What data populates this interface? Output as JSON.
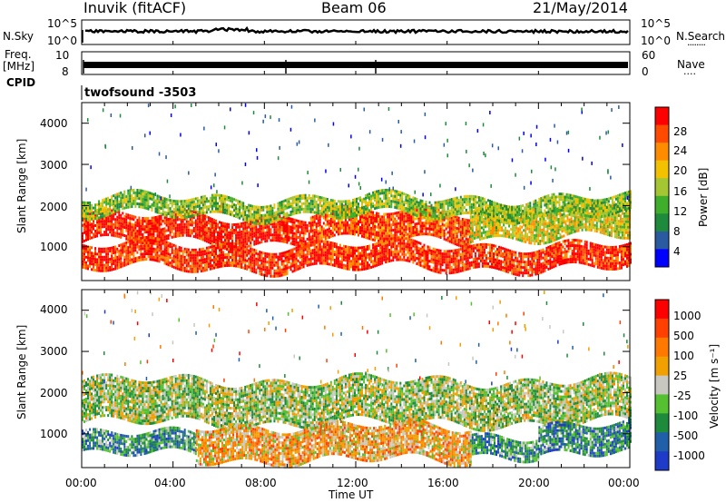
{
  "header": {
    "station": "Inuvik (fitACF)",
    "beam": "Beam 06",
    "date": "21/May/2014"
  },
  "cpid": {
    "label": "CPID",
    "value": "twofsound -3503"
  },
  "time_labels": [
    "00:00",
    "04:00",
    "08:00",
    "12:00",
    "16:00",
    "20:00",
    "00:00"
  ],
  "colors": {
    "power": [
      "#0000ff",
      "#2a5aa0",
      "#1e8a3c",
      "#3fae2a",
      "#a4c632",
      "#f2c200",
      "#ff8c00",
      "#ff4a00",
      "#ff0000"
    ],
    "velocity": [
      "#1e3cc8",
      "#2060a8",
      "#1e8a3c",
      "#55c030",
      "#c8c8c0",
      "#f0a000",
      "#ff7800",
      "#ff4000",
      "#ff0000"
    ]
  },
  "chart_data": [
    {
      "type": "line",
      "panel": "noise",
      "left_label": "N.Sky",
      "right_label": "N.Search",
      "left_ticks": [
        "10^5",
        "10^0"
      ],
      "right_ticks": [
        "10^5",
        "10^0"
      ],
      "legend_marker": "........"
    },
    {
      "type": "line",
      "panel": "frequency",
      "left_label_top": "Freq.",
      "left_label_bottom": "[MHz]",
      "left_ticks": [
        "10",
        "8"
      ],
      "right_label": "Nave",
      "right_ticks": [
        "60",
        "0"
      ],
      "legend_marker": "...."
    },
    {
      "type": "heatmap",
      "panel": "power",
      "ylabel": "Slant Range [km]",
      "yticks": [
        "4000",
        "3000",
        "2000",
        "1000"
      ],
      "ylim": [
        180,
        4500
      ],
      "xlim": [
        0,
        24
      ],
      "colorbar_label": "Power [dB]",
      "colorbar_ticks": [
        "28",
        "24",
        "20",
        "16",
        "12",
        "8",
        "4"
      ],
      "bands": [
        {
          "t0": 0,
          "t1": 10,
          "r0": 1150,
          "r1": 1750,
          "level": 0.95
        },
        {
          "t0": 10,
          "t1": 17,
          "r0": 1150,
          "r1": 1850,
          "level": 0.85
        },
        {
          "t0": 17,
          "t1": 24,
          "r0": 1250,
          "r1": 2000,
          "level": 0.55
        },
        {
          "t0": 0,
          "t1": 24,
          "r0": 500,
          "r1": 1050,
          "level": 0.9
        },
        {
          "t0": 0,
          "t1": 24,
          "r0": 1750,
          "r1": 2200,
          "level": 0.45
        }
      ]
    },
    {
      "type": "heatmap",
      "panel": "velocity",
      "xlabel": "Time UT",
      "ylabel": "Slant Range [km]",
      "yticks": [
        "4000",
        "3000",
        "2000",
        "1000"
      ],
      "ylim": [
        180,
        4500
      ],
      "xlim": [
        0,
        24
      ],
      "colorbar_label": "Velocity [m s⁻¹]",
      "colorbar_ticks": [
        "1000",
        "500",
        "100",
        "25",
        "-25",
        "-100",
        "-500",
        "-1000"
      ],
      "bands": [
        {
          "t0": 0,
          "t1": 24,
          "r0": 1300,
          "r1": 2300,
          "level": 0.45
        },
        {
          "t0": 0,
          "t1": 5,
          "r0": 500,
          "r1": 1000,
          "level": 0.3
        },
        {
          "t0": 5,
          "t1": 17,
          "r0": 400,
          "r1": 1200,
          "level": 0.62
        },
        {
          "t0": 17,
          "t1": 20,
          "r0": 500,
          "r1": 1000,
          "level": 0.3
        },
        {
          "t0": 20,
          "t1": 24,
          "r0": 500,
          "r1": 1200,
          "level": 0.25
        }
      ]
    }
  ]
}
